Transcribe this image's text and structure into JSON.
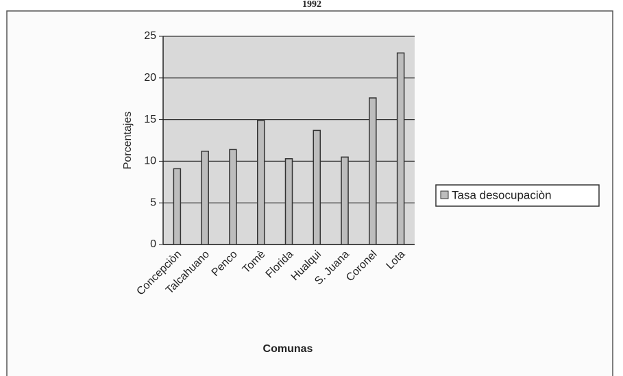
{
  "chart_data": {
    "type": "bar",
    "title": "1992",
    "categories": [
      "Concepciòn",
      "Talcahuano",
      "Penco",
      "Tomè",
      "Florida",
      "Hualqui",
      "S. Juana",
      "Coronel",
      "Lota"
    ],
    "series": [
      {
        "name": "Tasa desocupaciòn",
        "color": "#bdbdbd",
        "values": [
          9.1,
          11.2,
          11.4,
          14.9,
          10.3,
          13.7,
          10.5,
          17.6,
          23.0
        ]
      }
    ],
    "x_label": "Comunas",
    "y_label": "Porcentajes",
    "ylim": [
      0,
      25
    ],
    "yticks": [
      0,
      5,
      10,
      15,
      20,
      25
    ],
    "grid": true,
    "legend": "right"
  }
}
